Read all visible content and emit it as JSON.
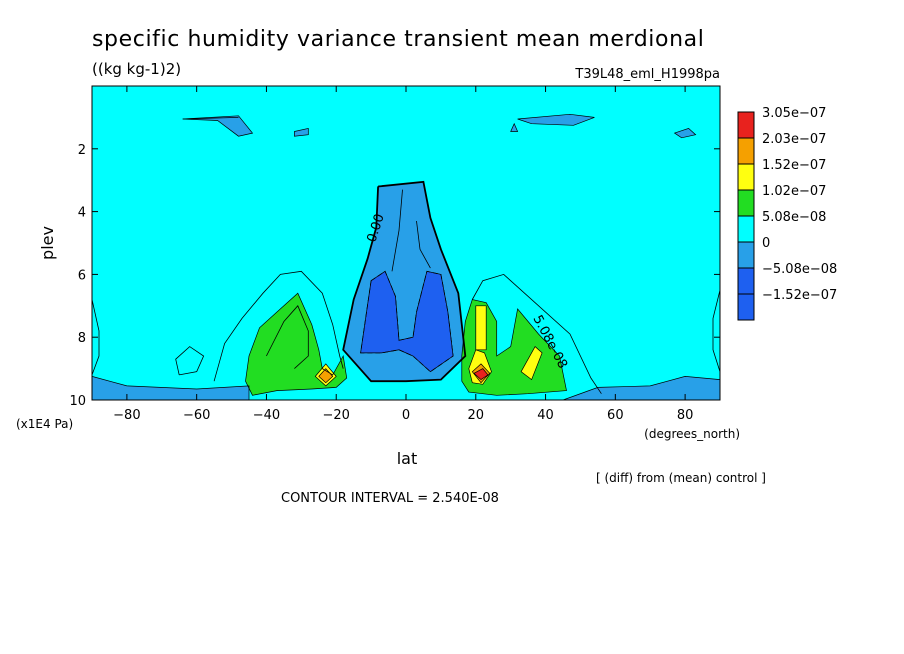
{
  "chart_data": {
    "type": "heatmap",
    "title": "specific humidity variance transient mean merdional",
    "units": "((kg kg-1)2)",
    "run_id": "T39L48_eml_H1998pa",
    "xlabel": "lat",
    "x_units": "(degrees_north)",
    "ylabel": "plev",
    "y_units": "(x1E4 Pa)",
    "xlim": [
      -90,
      90
    ],
    "ylim": [
      10,
      0
    ],
    "x_ticks": [
      -80,
      -60,
      -40,
      -20,
      0,
      20,
      40,
      60,
      80
    ],
    "y_ticks": [
      2,
      4,
      6,
      8,
      10
    ],
    "contour_interval": "CONTOUR INTERVAL = 2.540E-08",
    "note": "[ (diff) from (mean) control ]",
    "contour_labels": [
      "0.00",
      "5.08e-08"
    ],
    "legend_placement": "right",
    "legend": [
      {
        "label": "3.05e-07",
        "color": "#e8221e"
      },
      {
        "label": "2.03e-07",
        "color": "#f5a000"
      },
      {
        "label": "1.52e-07",
        "color": "#ffff10"
      },
      {
        "label": "1.02e-07",
        "color": "#22dd22"
      },
      {
        "label": "5.08e-08",
        "color": "#00ffff"
      },
      {
        "label": "0",
        "color": "#28a0e8"
      },
      {
        "label": "-5.08e-08",
        "color": "#1e60f0"
      },
      {
        "label": "-1.52e-07",
        "color": "#1e60f0"
      }
    ],
    "regions": [
      {
        "level": "0",
        "color": "#00ffff",
        "shape": [
          [
            -90,
            0
          ],
          [
            90,
            0
          ],
          [
            90,
            10
          ],
          [
            -90,
            10
          ]
        ]
      },
      {
        "level": "-5.08e-08",
        "color": "#28a0e8",
        "shape": [
          [
            -90,
            9.25
          ],
          [
            -80,
            9.55
          ],
          [
            -60,
            9.65
          ],
          [
            -45,
            9.55
          ],
          [
            -45,
            10
          ],
          [
            -90,
            10
          ]
        ]
      },
      {
        "level": "-5.08e-08",
        "color": "#28a0e8",
        "shape": [
          [
            45,
            10
          ],
          [
            55,
            9.6
          ],
          [
            70,
            9.55
          ],
          [
            80,
            9.25
          ],
          [
            90,
            9.35
          ],
          [
            90,
            10
          ]
        ]
      },
      {
        "level": "-5.08e-08",
        "color": "#28a0e8",
        "shape": [
          [
            -64,
            1.05
          ],
          [
            -48,
            0.95
          ],
          [
            -44,
            1.5
          ],
          [
            -48,
            1.6
          ],
          [
            -54,
            1.1
          ]
        ]
      },
      {
        "level": "-5.08e-08",
        "color": "#28a0e8",
        "shape": [
          [
            -32,
            1.45
          ],
          [
            -28,
            1.35
          ],
          [
            -28,
            1.55
          ],
          [
            -32,
            1.6
          ]
        ]
      },
      {
        "level": "-5.08e-08",
        "color": "#28a0e8",
        "shape": [
          [
            32,
            1.05
          ],
          [
            47,
            0.9
          ],
          [
            54,
            1.0
          ],
          [
            48,
            1.25
          ],
          [
            36,
            1.2
          ]
        ]
      },
      {
        "level": "-5.08e-08",
        "color": "#28a0e8",
        "shape": [
          [
            30,
            1.45
          ],
          [
            31,
            1.2
          ],
          [
            32,
            1.45
          ]
        ]
      },
      {
        "level": "-5.08e-08",
        "color": "#28a0e8",
        "shape": [
          [
            77,
            1.5
          ],
          [
            81,
            1.35
          ],
          [
            83,
            1.55
          ],
          [
            79,
            1.65
          ]
        ]
      },
      {
        "level": "-5.08e-08",
        "color": "#28a0e8",
        "shape": [
          [
            -8,
            3.2
          ],
          [
            5,
            3.05
          ],
          [
            7,
            4.2
          ],
          [
            10,
            5.2
          ],
          [
            15,
            6.6
          ],
          [
            17,
            8.6
          ],
          [
            10,
            9.35
          ],
          [
            0,
            9.4
          ],
          [
            -10,
            9.4
          ],
          [
            -18,
            8.4
          ],
          [
            -15,
            6.8
          ],
          [
            -11,
            5.5
          ],
          [
            -8.5,
            4.5
          ]
        ]
      },
      {
        "level": "-1.52e-07",
        "color": "#1e60f0",
        "shape": [
          [
            -10,
            6.2
          ],
          [
            -6,
            5.9
          ],
          [
            -3,
            6.7
          ],
          [
            -2,
            8.1
          ],
          [
            2,
            8.0
          ],
          [
            3,
            7.2
          ],
          [
            6,
            5.9
          ],
          [
            10,
            6.0
          ],
          [
            12,
            7.2
          ],
          [
            13.5,
            8.6
          ],
          [
            7,
            9.1
          ],
          [
            2,
            8.6
          ],
          [
            -2,
            8.4
          ],
          [
            -7,
            8.5
          ],
          [
            -13,
            8.5
          ]
        ]
      },
      {
        "level": "5.08e-08",
        "color": "#22dd22",
        "shape": [
          [
            -46,
            9.4
          ],
          [
            -45,
            8.6
          ],
          [
            -42,
            7.7
          ],
          [
            -36,
            7.1
          ],
          [
            -31,
            6.6
          ],
          [
            -27,
            7.6
          ],
          [
            -25,
            8.4
          ],
          [
            -24,
            9.0
          ],
          [
            -21,
            9.2
          ],
          [
            -18,
            8.6
          ],
          [
            -17,
            9.3
          ],
          [
            -20,
            9.6
          ],
          [
            -27,
            9.65
          ],
          [
            -37,
            9.7
          ],
          [
            -44,
            9.85
          ]
        ]
      },
      {
        "level": "5.08e-08",
        "color": "#22dd22",
        "shape": [
          [
            16,
            8.6
          ],
          [
            17,
            7.5
          ],
          [
            19,
            6.8
          ],
          [
            23,
            6.9
          ],
          [
            26,
            7.5
          ],
          [
            26,
            8.6
          ],
          [
            30,
            8.3
          ],
          [
            32,
            7.1
          ],
          [
            35,
            7.5
          ],
          [
            38,
            7.9
          ],
          [
            44,
            8.6
          ],
          [
            46,
            9.7
          ],
          [
            35,
            9.8
          ],
          [
            26,
            9.85
          ],
          [
            18,
            9.75
          ],
          [
            16,
            9.4
          ]
        ]
      },
      {
        "level": "1.02e-07",
        "color": "#ffff10",
        "shape": [
          [
            -26,
            9.25
          ],
          [
            -23,
            8.85
          ],
          [
            -20,
            9.25
          ],
          [
            -23,
            9.55
          ]
        ]
      },
      {
        "level": "1.02e-07",
        "color": "#ffff10",
        "shape": [
          [
            18,
            9.0
          ],
          [
            20,
            8.4
          ],
          [
            22.5,
            8.5
          ],
          [
            24.5,
            9.1
          ],
          [
            22,
            9.5
          ],
          [
            19,
            9.45
          ]
        ]
      },
      {
        "level": "1.02e-07",
        "color": "#ffff10",
        "shape": [
          [
            20,
            7.0
          ],
          [
            23,
            7.0
          ],
          [
            23,
            8.4
          ],
          [
            20,
            8.4
          ]
        ]
      },
      {
        "level": "1.02e-07",
        "color": "#ffff10",
        "shape": [
          [
            33,
            9.1
          ],
          [
            37,
            8.3
          ],
          [
            39,
            8.5
          ],
          [
            36,
            9.35
          ]
        ]
      },
      {
        "level": "1.52e-07",
        "color": "#f5a000",
        "shape": [
          [
            -25,
            9.25
          ],
          [
            -23,
            9.0
          ],
          [
            -21,
            9.25
          ],
          [
            -23,
            9.45
          ]
        ]
      },
      {
        "level": "1.52e-07",
        "color": "#f5a000",
        "shape": [
          [
            19,
            9.1
          ],
          [
            21.5,
            8.85
          ],
          [
            24,
            9.15
          ],
          [
            21.5,
            9.45
          ]
        ]
      },
      {
        "level": "3.05e-07",
        "color": "#e8221e",
        "shape": [
          [
            19.5,
            9.15
          ],
          [
            22,
            9.0
          ],
          [
            23.5,
            9.2
          ],
          [
            21.5,
            9.35
          ]
        ]
      }
    ],
    "contour_lines": [
      {
        "style": "thick",
        "path": [
          [
            -8,
            3.2
          ],
          [
            5,
            3.05
          ],
          [
            7,
            4.2
          ],
          [
            10,
            5.2
          ],
          [
            15,
            6.6
          ],
          [
            17,
            8.6
          ],
          [
            10,
            9.35
          ],
          [
            0,
            9.4
          ],
          [
            -10,
            9.4
          ],
          [
            -18,
            8.4
          ],
          [
            -15,
            6.8
          ],
          [
            -11,
            5.5
          ],
          [
            -8.5,
            4.5
          ],
          [
            -8,
            3.2
          ]
        ]
      },
      {
        "style": "dashed",
        "path": [
          [
            -10,
            6.2
          ],
          [
            -6,
            5.9
          ],
          [
            -3,
            6.7
          ],
          [
            -2,
            8.1
          ],
          [
            2,
            8.0
          ],
          [
            3,
            7.2
          ],
          [
            6,
            5.9
          ],
          [
            10,
            6.0
          ],
          [
            12,
            7.2
          ],
          [
            13.5,
            8.6
          ],
          [
            7,
            9.1
          ],
          [
            2,
            8.6
          ],
          [
            -2,
            8.4
          ],
          [
            -7,
            8.5
          ],
          [
            -13,
            8.5
          ],
          [
            -10,
            6.2
          ]
        ]
      },
      {
        "style": "thin",
        "path": [
          [
            -55,
            9.4
          ],
          [
            -52,
            8.2
          ],
          [
            -47,
            7.4
          ],
          [
            -41,
            6.6
          ],
          [
            -36,
            6.0
          ],
          [
            -30,
            5.9
          ],
          [
            -24,
            6.6
          ],
          [
            -21,
            7.6
          ],
          [
            -19,
            8.6
          ],
          [
            -18,
            9.0
          ]
        ]
      },
      {
        "style": "thin",
        "path": [
          [
            -40,
            8.6
          ],
          [
            -35,
            7.5
          ],
          [
            -31,
            7.0
          ],
          [
            -28,
            7.8
          ],
          [
            -28,
            8.6
          ],
          [
            -32,
            9.0
          ]
        ]
      },
      {
        "style": "thin",
        "path": [
          [
            19,
            6.8
          ],
          [
            22,
            6.2
          ],
          [
            28,
            6.0
          ],
          [
            37,
            6.9
          ],
          [
            47,
            7.9
          ],
          [
            53,
            9.3
          ],
          [
            56,
            9.8
          ]
        ]
      },
      {
        "style": "thin",
        "path": [
          [
            -65,
            9.2
          ],
          [
            -66,
            8.7
          ],
          [
            -62,
            8.3
          ],
          [
            -58,
            8.6
          ],
          [
            -60,
            9.1
          ],
          [
            -65,
            9.2
          ]
        ]
      },
      {
        "style": "thin",
        "path": [
          [
            -90,
            6.8
          ],
          [
            -88,
            7.8
          ],
          [
            -88,
            8.6
          ],
          [
            -90,
            9.2
          ]
        ]
      },
      {
        "style": "thin",
        "path": [
          [
            90,
            6.5
          ],
          [
            88,
            7.4
          ],
          [
            88,
            8.4
          ],
          [
            90,
            9.1
          ]
        ]
      },
      {
        "style": "thin",
        "path": [
          [
            -1,
            3.3
          ],
          [
            -2,
            4.6
          ],
          [
            -4,
            5.9
          ]
        ]
      },
      {
        "style": "thin",
        "path": [
          [
            3,
            4.3
          ],
          [
            4,
            5.2
          ],
          [
            7,
            5.8
          ]
        ]
      },
      {
        "style": "thin",
        "path": [
          [
            -48,
            1.0
          ],
          [
            -64,
            1.05
          ]
        ]
      }
    ]
  }
}
